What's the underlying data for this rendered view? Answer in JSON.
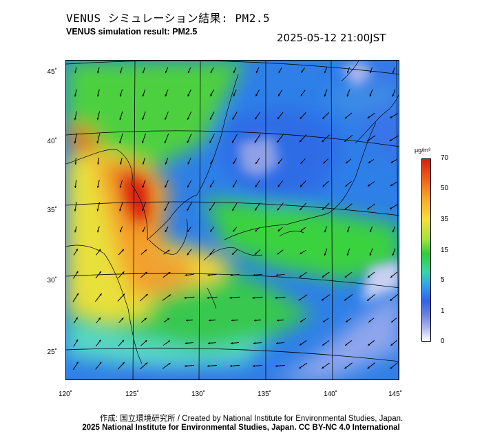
{
  "header": {
    "title_jp": "VENUS シミュレーション結果: PM2.5",
    "title_en": "VENUS simulation result: PM2.5",
    "timestamp": "2025-05-12 21:00JST"
  },
  "map": {
    "lat_labels": [
      "45˚",
      "40˚",
      "35˚",
      "30˚",
      "25˚"
    ],
    "lon_labels": [
      "120˚",
      "125˚",
      "130˚",
      "135˚",
      "140˚",
      "145˚"
    ],
    "field": "PM2.5 concentration with wind vectors"
  },
  "colorbar": {
    "unit": "μg/m³",
    "labels": [
      "70",
      "50",
      "35",
      "15",
      "5",
      "1",
      "0"
    ],
    "colors": [
      "#d42010",
      "#f8a524",
      "#f6df3a",
      "#2fcd3a",
      "#36d5a8",
      "#2f63e8",
      "#ffffff"
    ]
  },
  "footer": {
    "credit": "作成: 国立環境研究所 / Created by National Institute for Environmental Studies, Japan.",
    "license": "2025 National Institute for Environmental Studies, Japan. CC BY-NC 4.0 International"
  }
}
